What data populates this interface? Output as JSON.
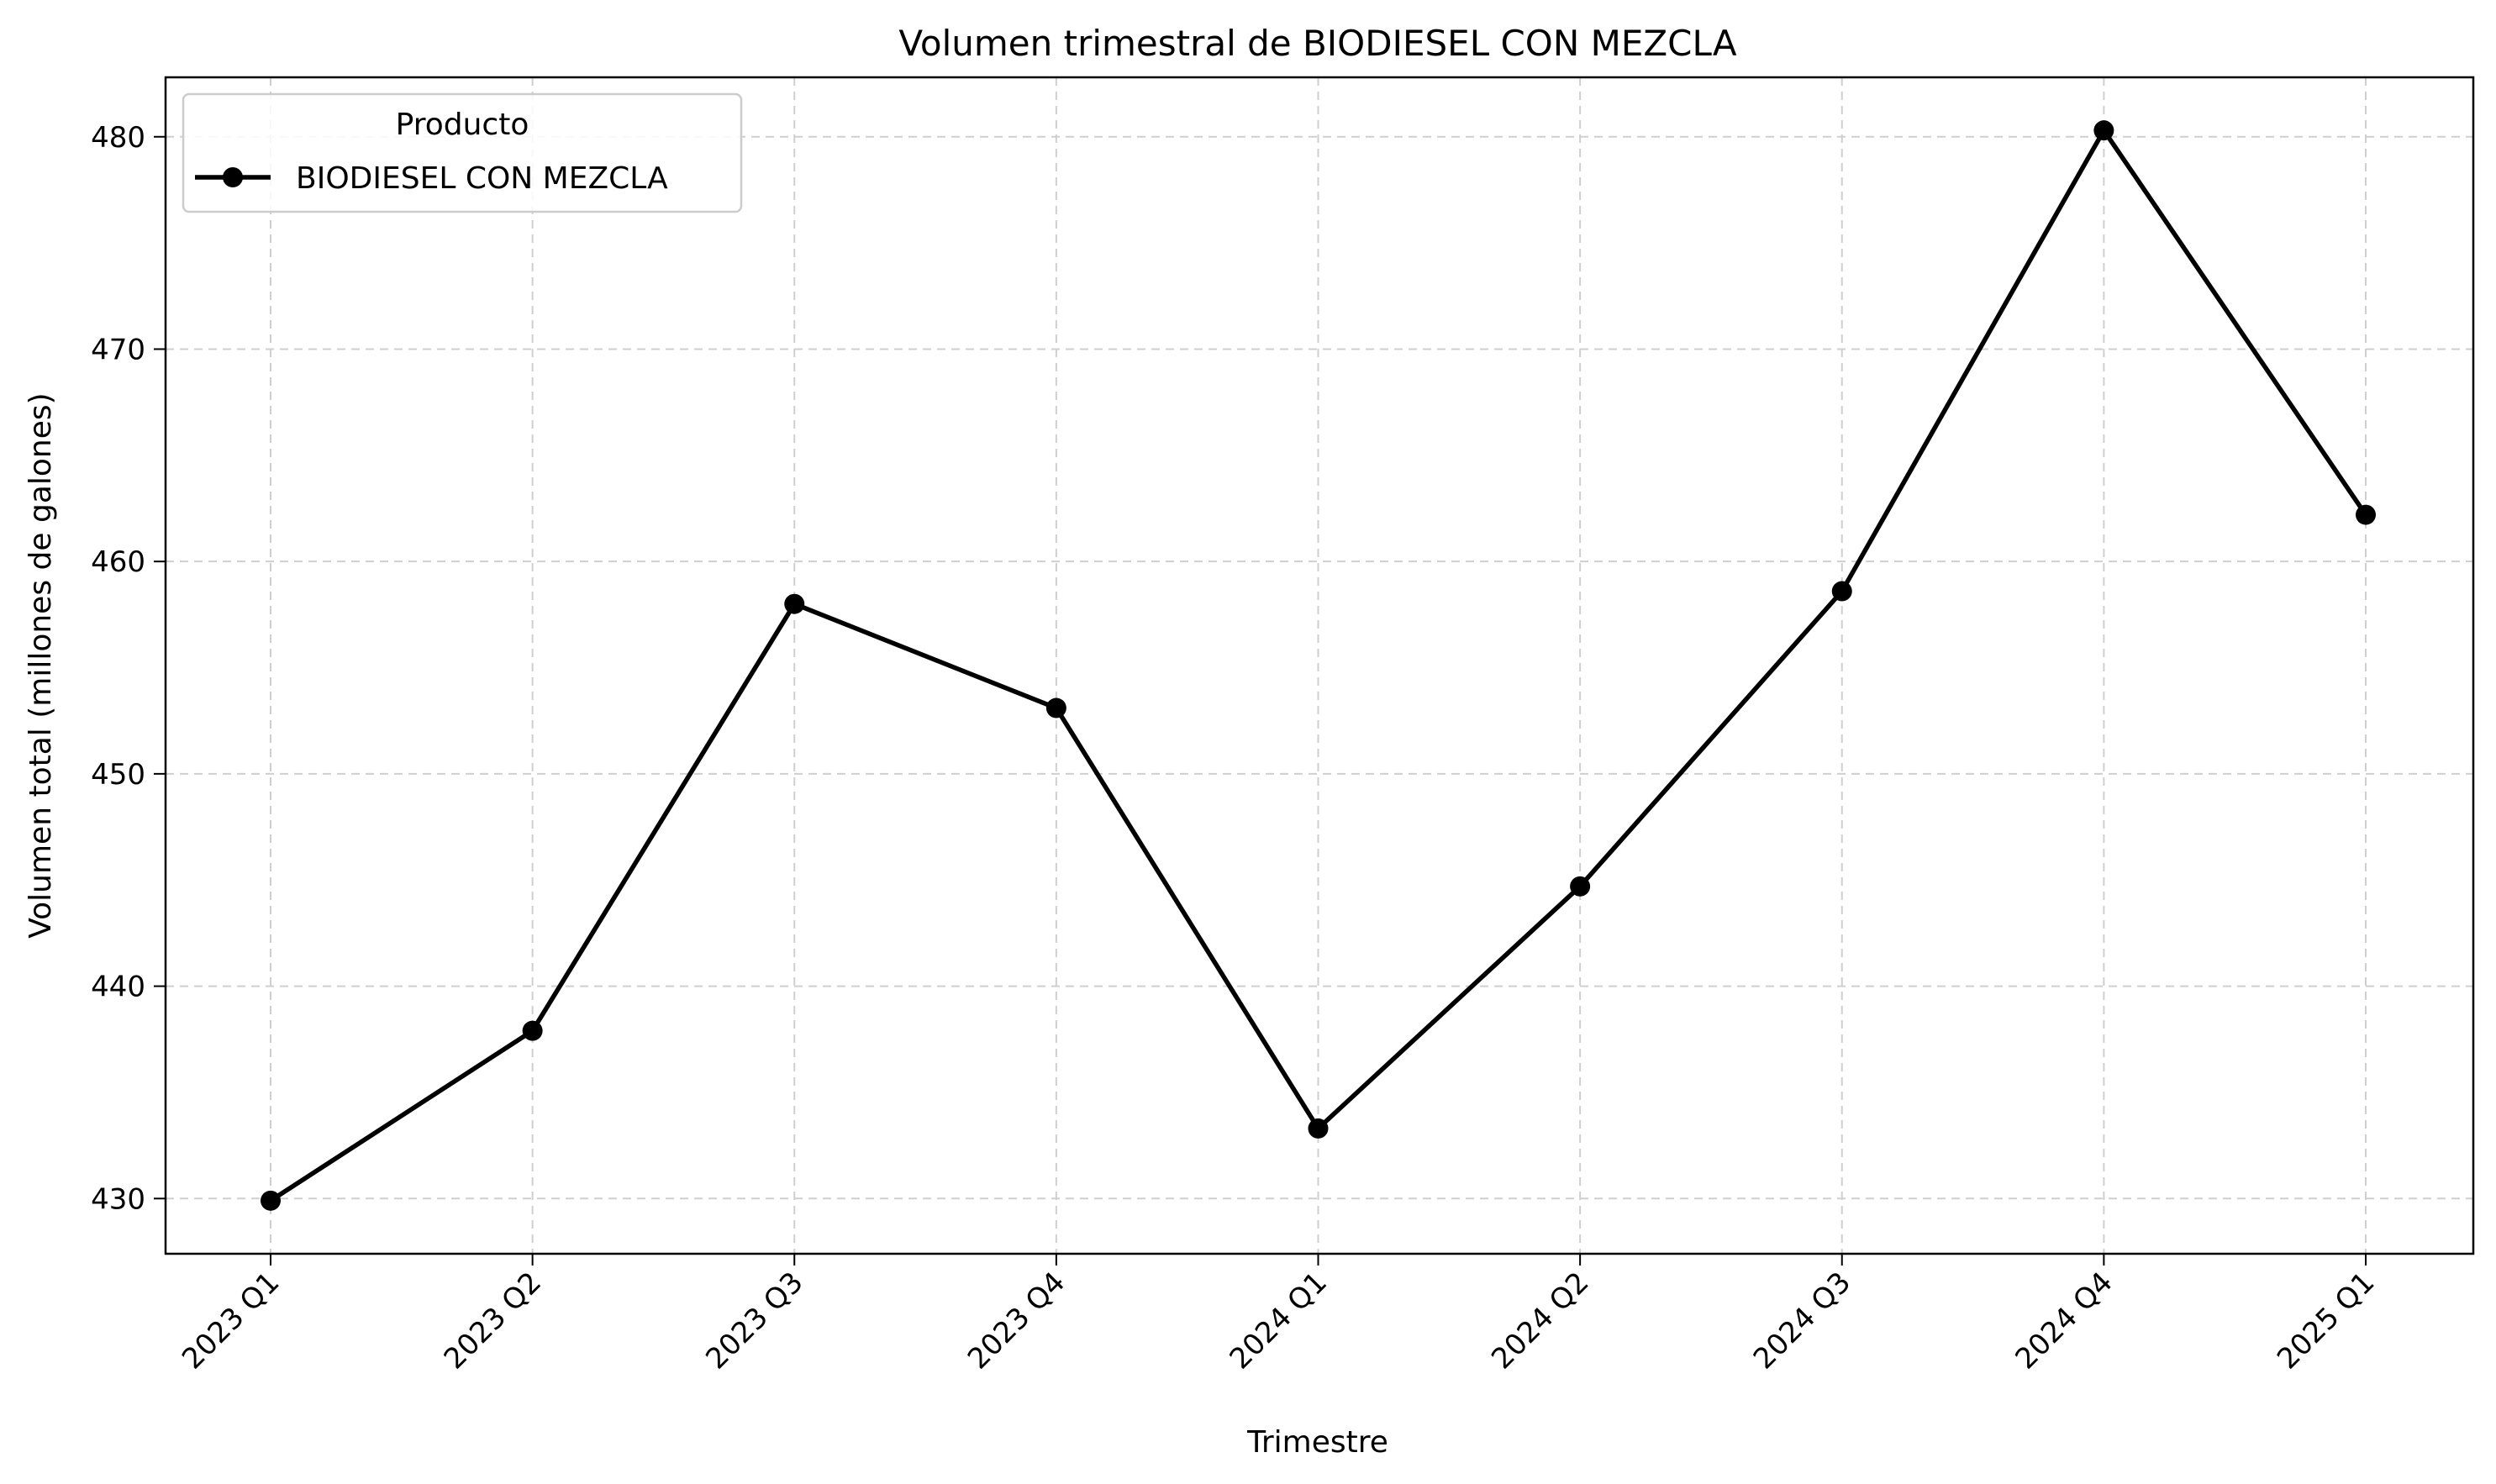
{
  "chart_data": {
    "type": "line",
    "title": "Volumen trimestral de BIODIESEL CON MEZCLA",
    "xlabel": "Trimestre",
    "ylabel": "Volumen total (millones de galones)",
    "categories": [
      "2023 Q1",
      "2023 Q2",
      "2023 Q3",
      "2023 Q4",
      "2024 Q1",
      "2024 Q2",
      "2024 Q3",
      "2024 Q4",
      "2025 Q1"
    ],
    "series": [
      {
        "name": "BIODIESEL CON MEZCLA",
        "color": "#000000",
        "marker": "circle",
        "values": [
          429.9,
          437.9,
          458.0,
          453.1,
          433.3,
          444.7,
          458.6,
          480.3,
          462.2
        ]
      }
    ],
    "ylim": [
      427.4,
      482.8
    ],
    "yticks": [
      430,
      440,
      450,
      460,
      470,
      480
    ],
    "grid": true,
    "legend": {
      "title": "Producto",
      "placement": "top-left"
    }
  }
}
